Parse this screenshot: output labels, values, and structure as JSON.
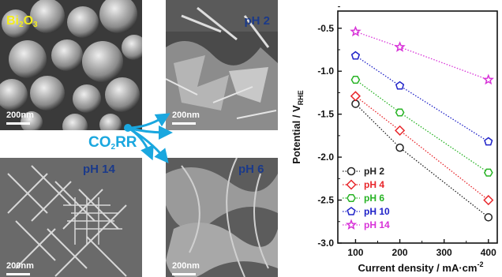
{
  "panels": {
    "bi2o3": {
      "base": "Bi",
      "sub1": "2",
      "mid": "O",
      "sub2": "3",
      "scale": "200nm",
      "color": "#f3ec1d"
    },
    "ph2": {
      "label": "pH 2",
      "scale": "200nm",
      "color": "#1b3a8a"
    },
    "ph14": {
      "label": "pH 14",
      "scale": "200nm",
      "color": "#1b3a8a"
    },
    "ph6": {
      "label": "pH 6",
      "scale": "200nm",
      "color": "#1b3a8a"
    }
  },
  "co2rr": {
    "base": "CO",
    "sub": "2",
    "rest": "RR",
    "color": "#1aa7df"
  },
  "chart_data": {
    "type": "line",
    "xlabel": "Current density / mA·cm",
    "xlabel_sup": "-2",
    "ylabel": "Potential / V",
    "ylabel_sub": "RHE",
    "xlim": [
      60,
      420
    ],
    "ylim": [
      -3.0,
      -0.3
    ],
    "x_ticks": [
      100,
      200,
      300,
      400
    ],
    "y_ticks": [
      -3.0,
      -2.5,
      -2.0,
      -1.5,
      -1.0,
      -0.5
    ],
    "x_tick_labels": [
      "100",
      "200",
      "300",
      "400"
    ],
    "y_tick_labels": [
      "-3.0",
      "-2.5",
      "-2.0",
      "-1.5",
      "-1.0",
      "-0.5"
    ],
    "legend_position": "bottom-left",
    "series": [
      {
        "name": "pH 2",
        "x": [
          100,
          200,
          400
        ],
        "values": [
          -1.38,
          -1.89,
          -2.7
        ],
        "color": "#222222",
        "marker": "circle"
      },
      {
        "name": "pH 4",
        "x": [
          100,
          200,
          400
        ],
        "values": [
          -1.29,
          -1.69,
          -2.5
        ],
        "color": "#e8262b",
        "marker": "diamond"
      },
      {
        "name": "pH 6",
        "x": [
          100,
          200,
          400
        ],
        "values": [
          -1.1,
          -1.48,
          -2.18
        ],
        "color": "#27b324",
        "marker": "hexagon"
      },
      {
        "name": "pH 10",
        "x": [
          100,
          200,
          400
        ],
        "values": [
          -0.82,
          -1.17,
          -1.82
        ],
        "color": "#1f22c8",
        "marker": "pentagon"
      },
      {
        "name": "pH 14",
        "x": [
          100,
          200,
          400
        ],
        "values": [
          -0.54,
          -0.72,
          -1.1
        ],
        "color": "#d833d8",
        "marker": "star"
      }
    ]
  }
}
